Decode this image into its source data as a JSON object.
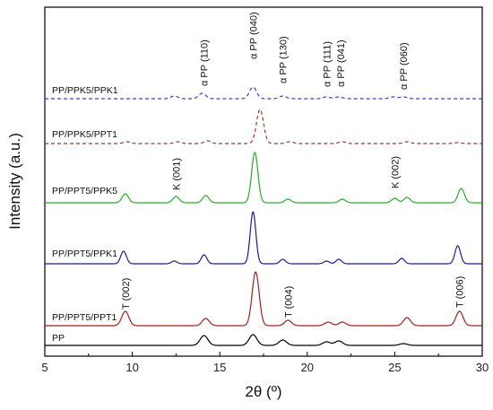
{
  "chart_data": {
    "type": "line",
    "title": "",
    "xlabel": "2θ (º)",
    "ylabel": "Intensity (a.u.)",
    "xlim": [
      5,
      30
    ],
    "xticks": [
      5,
      10,
      15,
      20,
      25,
      30
    ],
    "grid": false,
    "series": [
      {
        "name": "PP",
        "color": "#000000",
        "dash": false,
        "peaks": [
          [
            14.1,
            11
          ],
          [
            16.9,
            12
          ],
          [
            18.6,
            6
          ],
          [
            21.1,
            4
          ],
          [
            21.8,
            5
          ],
          [
            25.5,
            2
          ]
        ]
      },
      {
        "name": "PP/PPT5/PPT1",
        "color": "#a0201a",
        "dash": false,
        "peaks": [
          [
            9.6,
            16
          ],
          [
            14.2,
            8
          ],
          [
            17.05,
            60
          ],
          [
            18.9,
            6
          ],
          [
            21.2,
            4
          ],
          [
            22.0,
            4
          ],
          [
            25.7,
            9
          ],
          [
            28.7,
            16
          ]
        ]
      },
      {
        "name": "PP/PPT5/PPK1",
        "color": "#1a1aa0",
        "dash": false,
        "peaks": [
          [
            9.5,
            14
          ],
          [
            12.4,
            3
          ],
          [
            14.1,
            10
          ],
          [
            16.9,
            58
          ],
          [
            18.6,
            5
          ],
          [
            21.1,
            3
          ],
          [
            21.8,
            5
          ],
          [
            25.4,
            6
          ],
          [
            28.6,
            20
          ]
        ]
      },
      {
        "name": "PP/PPT5/PPK5",
        "color": "#22b022",
        "dash": false,
        "peaks": [
          [
            9.6,
            10
          ],
          [
            12.5,
            7
          ],
          [
            14.2,
            8
          ],
          [
            17.0,
            56
          ],
          [
            18.9,
            4
          ],
          [
            22.0,
            4
          ],
          [
            25.0,
            5
          ],
          [
            25.7,
            6
          ],
          [
            28.8,
            16
          ]
        ]
      },
      {
        "name": "PP/PPK5/PPT1",
        "color": "#9b3a30",
        "dash": true,
        "peaks": [
          [
            9.7,
            2
          ],
          [
            12.6,
            2
          ],
          [
            14.3,
            3
          ],
          [
            17.3,
            38
          ],
          [
            19.0,
            2
          ],
          [
            22.0,
            2
          ],
          [
            25.7,
            2
          ],
          [
            28.6,
            1
          ]
        ]
      },
      {
        "name": "PP/PPK5/PPK1",
        "color": "#3040c8",
        "dash": true,
        "peaks": [
          [
            12.4,
            3
          ],
          [
            14.0,
            6
          ],
          [
            16.9,
            13
          ],
          [
            18.6,
            3
          ],
          [
            21.1,
            2
          ],
          [
            21.8,
            2
          ],
          [
            24.9,
            2
          ],
          [
            25.5,
            2
          ]
        ]
      }
    ],
    "annotations": [
      {
        "text": "α PP (110)",
        "x": 14.1
      },
      {
        "text": "α PP (040)",
        "x": 16.9
      },
      {
        "text": "α PP (130)",
        "x": 18.6
      },
      {
        "text": "α PP (111)",
        "x": 21.1
      },
      {
        "text": "α PP (041)",
        "x": 21.9
      },
      {
        "text": "α PP (060)",
        "x": 25.5
      },
      {
        "text": "K (001)",
        "x": 12.5
      },
      {
        "text": "K (002)",
        "x": 25.0
      },
      {
        "text": "T (002)",
        "x": 9.6
      },
      {
        "text": "T (004)",
        "x": 18.9
      },
      {
        "text": "T (006)",
        "x": 28.7
      }
    ]
  }
}
